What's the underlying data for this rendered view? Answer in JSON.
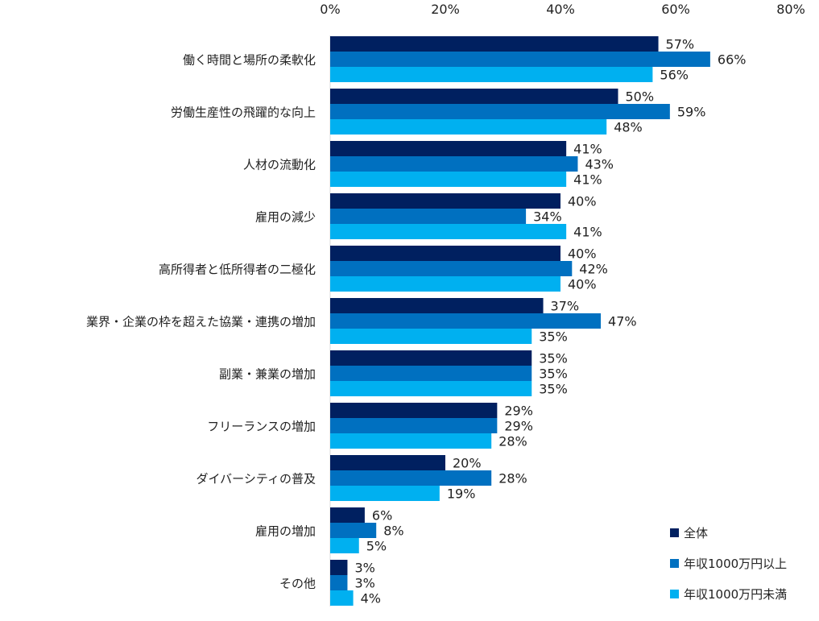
{
  "chart_data": {
    "type": "bar",
    "orientation": "horizontal",
    "title": "",
    "xlabel": "",
    "ylabel": "",
    "xlim": [
      0,
      80
    ],
    "x_ticks": [
      "0%",
      "20%",
      "40%",
      "60%",
      "80%"
    ],
    "grid": false,
    "legend_position": "bottom-right",
    "categories": [
      "働く時間と場所の柔軟化",
      "労働生産性の飛躍的な向上",
      "人材の流動化",
      "雇用の減少",
      "高所得者と低所得者の二極化",
      "業界・企業の枠を超えた協業・連携の増加",
      "副業・兼業の増加",
      "フリーランスの増加",
      "ダイバーシティの普及",
      "雇用の増加",
      "その他"
    ],
    "series": [
      {
        "name": "全体",
        "color": "#002060",
        "values": [
          57,
          50,
          41,
          40,
          40,
          37,
          35,
          29,
          20,
          6,
          3
        ]
      },
      {
        "name": "年収1000万円以上",
        "color": "#0070C0",
        "values": [
          66,
          59,
          43,
          34,
          42,
          47,
          35,
          29,
          28,
          8,
          3
        ]
      },
      {
        "name": "年収1000万円未満",
        "color": "#00B0F0",
        "values": [
          56,
          48,
          41,
          41,
          40,
          35,
          35,
          28,
          19,
          5,
          4
        ]
      }
    ],
    "value_format": "%"
  }
}
